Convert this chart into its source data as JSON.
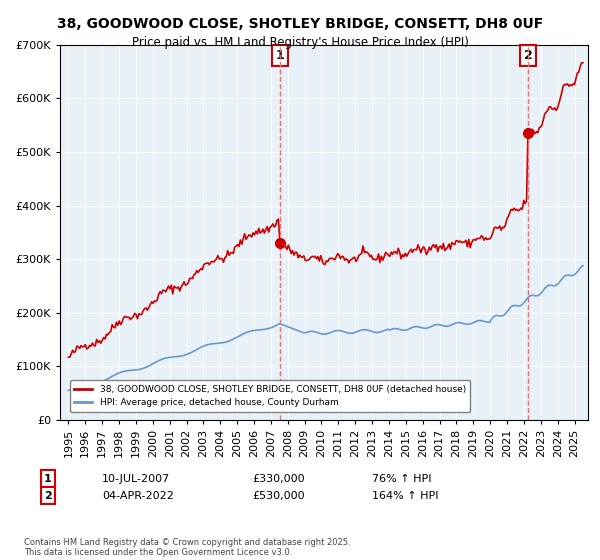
{
  "title": "38, GOODWOOD CLOSE, SHOTLEY BRIDGE, CONSETT, DH8 0UF",
  "subtitle": "Price paid vs. HM Land Registry's House Price Index (HPI)",
  "hpi_label": "HPI: Average price, detached house, County Durham",
  "property_label": "38, GOODWOOD CLOSE, SHOTLEY BRIDGE, CONSETT, DH8 0UF (detached house)",
  "sale1_date": "10-JUL-2007",
  "sale1_price": 330000,
  "sale1_hpi": "76%",
  "sale2_date": "04-APR-2022",
  "sale2_price": 530000,
  "sale2_hpi": "164%",
  "footnote": "Contains HM Land Registry data © Crown copyright and database right 2025.\nThis data is licensed under the Open Government Licence v3.0.",
  "hpi_color": "#6699cc",
  "property_color": "#cc0000",
  "bg_color": "#e8f0f8",
  "annotation_vline_color": "#ff6666",
  "ylim": [
    0,
    700000
  ],
  "xlabel_color": "#333333",
  "grid_color": "#ffffff"
}
